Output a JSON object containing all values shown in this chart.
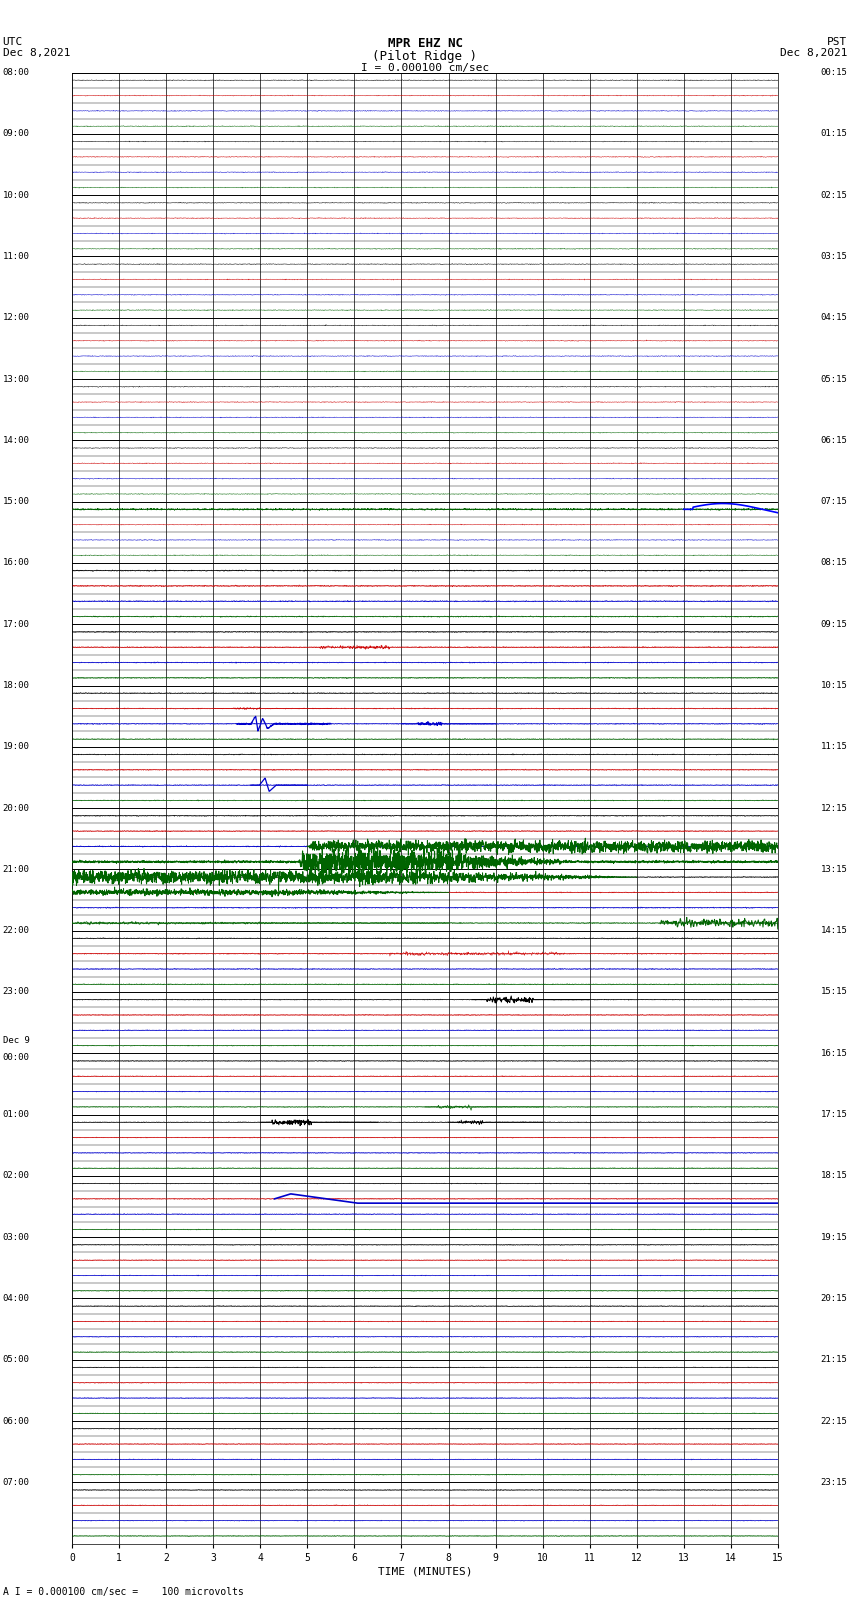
{
  "title_line1": "MPR EHZ NC",
  "title_line2": "(Pilot Ridge )",
  "title_line3": "I = 0.000100 cm/sec",
  "left_header_line1": "UTC",
  "left_header_line2": "Dec 8,2021",
  "right_header_line1": "PST",
  "right_header_line2": "Dec 8,2021",
  "footer": "A I = 0.000100 cm/sec =    100 microvolts",
  "xlabel": "TIME (MINUTES)",
  "bg_color": "#ffffff",
  "n_strips": 96,
  "strip_colors": [
    "#000000",
    "#cc0000",
    "#0000cc",
    "#006400"
  ],
  "utc_hours": [
    "08:00",
    "09:00",
    "10:00",
    "11:00",
    "12:00",
    "13:00",
    "14:00",
    "15:00",
    "16:00",
    "17:00",
    "18:00",
    "19:00",
    "20:00",
    "21:00",
    "22:00",
    "23:00",
    "Dec 9\n00:00",
    "01:00",
    "02:00",
    "03:00",
    "04:00",
    "05:00",
    "06:00",
    "07:00"
  ],
  "pst_hours": [
    "00:15",
    "01:15",
    "02:15",
    "03:15",
    "04:15",
    "05:15",
    "06:15",
    "07:15",
    "08:15",
    "09:15",
    "10:15",
    "11:15",
    "12:15",
    "13:15",
    "14:15",
    "15:15",
    "16:15",
    "17:15",
    "18:15",
    "19:15",
    "20:15",
    "21:15",
    "22:15",
    "23:15"
  ]
}
